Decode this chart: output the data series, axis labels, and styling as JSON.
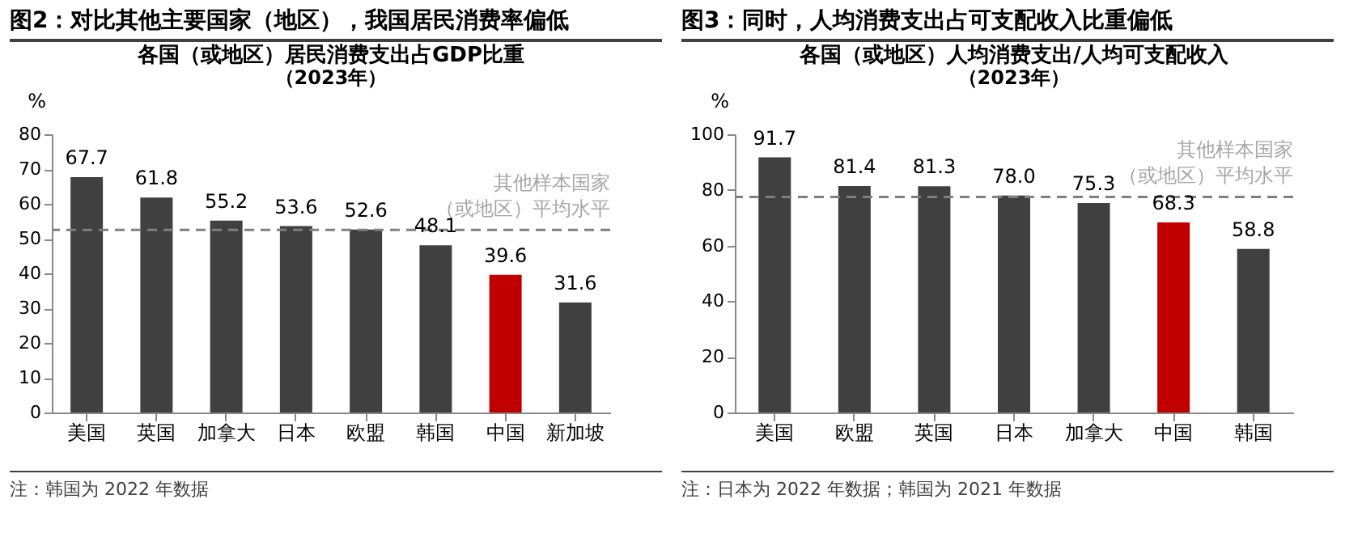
{
  "chart_data": [
    {
      "type": "bar",
      "title": "图2：对比其他主要国家（地区），我国居民消费率偏低",
      "subtitle": "各国（或地区）居民消费支出占GDP比重（2023年）",
      "ylabel": "%",
      "categories": [
        "美国",
        "英国",
        "加拿大",
        "日本",
        "欧盟",
        "韩国",
        "中国",
        "新加坡"
      ],
      "values": [
        67.7,
        61.8,
        55.2,
        53.6,
        52.6,
        48.1,
        39.6,
        31.6
      ],
      "value_labels": [
        "67.7",
        "61.8",
        "55.2",
        "53.6",
        "52.6",
        "48.1",
        "39.6",
        "31.6"
      ],
      "colors": [
        "#404040",
        "#404040",
        "#404040",
        "#404040",
        "#404040",
        "#404040",
        "#c00000",
        "#404040"
      ],
      "ylim": [
        0,
        80
      ],
      "yticks": [
        0,
        10,
        20,
        30,
        40,
        50,
        60,
        70,
        80
      ],
      "grid": false,
      "ref_lines": [
        {
          "axis": "y",
          "value": 52.5,
          "label": "其他样本国家（或地区）平均水平",
          "color": "#7f7f7f",
          "line_style": "dashed"
        }
      ],
      "annotations": [
        "注：韩国为 2022 年数据"
      ]
    },
    {
      "type": "bar",
      "title": "图3：同时，人均消费支出占可支配收入比重偏低",
      "subtitle": "各国（或地区）人均消费支出/人均可支配收入（2023年）",
      "ylabel": "%",
      "categories": [
        "美国",
        "欧盟",
        "英国",
        "日本",
        "加拿大",
        "中国",
        "韩国"
      ],
      "values": [
        91.7,
        81.4,
        81.3,
        78.0,
        75.3,
        68.3,
        58.8
      ],
      "value_labels": [
        "91.7",
        "81.4",
        "81.3",
        "78.0",
        "75.3",
        "68.3",
        "58.8"
      ],
      "colors": [
        "#404040",
        "#404040",
        "#404040",
        "#404040",
        "#404040",
        "#c00000",
        "#404040"
      ],
      "ylim": [
        0,
        100
      ],
      "yticks": [
        0,
        20,
        40,
        60,
        80,
        100
      ],
      "grid": false,
      "ref_lines": [
        {
          "axis": "y",
          "value": 77.5,
          "label": "其他样本国家（或地区）平均水平",
          "color": "#7f7f7f",
          "line_style": "dashed"
        }
      ],
      "annotations": [
        "注：日本为 2022 年数据；韩国为 2021 年数据"
      ]
    }
  ]
}
